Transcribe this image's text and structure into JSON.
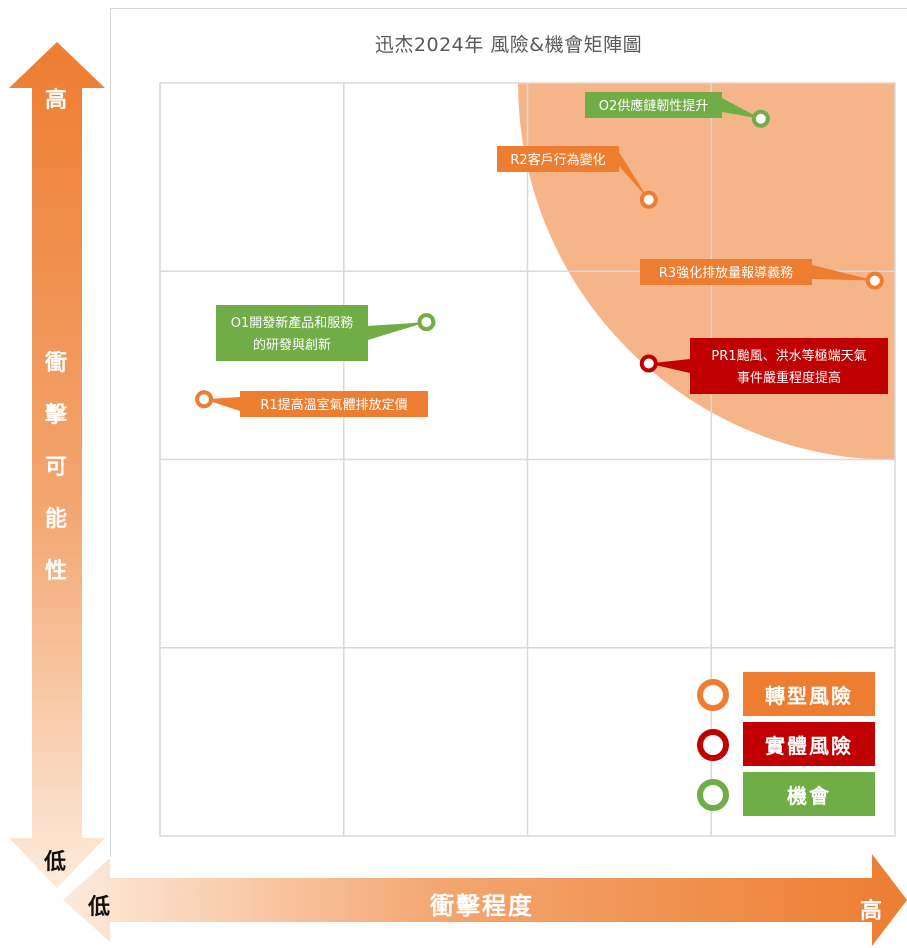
{
  "title": "迅杰2024年 風險&機會矩陣圖",
  "axes": {
    "y_label": [
      "衝",
      "擊",
      "可",
      "能",
      "性"
    ],
    "y_high": "高",
    "y_low": "低",
    "x_label": "衝擊程度",
    "x_low": "低",
    "x_high": "高"
  },
  "colors": {
    "transition_risk": "#ED7D31",
    "physical_risk": "#C00000",
    "opportunity": "#70AD47",
    "high_zone": "#F4B183"
  },
  "legend": [
    {
      "label": "轉型風險",
      "color": "#ED7D31"
    },
    {
      "label": "實體風險",
      "color": "#C00000"
    },
    {
      "label": "機會",
      "color": "#70AD47"
    }
  ],
  "chart_data": {
    "type": "scatter",
    "title": "迅杰2024年 風險&機會矩陣圖",
    "xlabel": "衝擊程度",
    "ylabel": "衝擊可能性",
    "xlim": [
      0,
      4
    ],
    "ylim": [
      0,
      4
    ],
    "grid": true,
    "legend_position": "bottom-right",
    "points": [
      {
        "id": "O2",
        "label": "O2供應鏈韌性提升",
        "x": 3.27,
        "y": 3.81,
        "category": "機會"
      },
      {
        "id": "R2",
        "label": "R2客戶行為變化",
        "x": 2.66,
        "y": 3.38,
        "category": "轉型風險"
      },
      {
        "id": "R3",
        "label": "R3強化排放量報導義務",
        "x": 3.89,
        "y": 2.95,
        "category": "轉型風險"
      },
      {
        "id": "O1",
        "label": "O1開發新產品和服務的研發與創新",
        "x": 1.45,
        "y": 2.73,
        "category": "機會"
      },
      {
        "id": "PR1",
        "label": "PR1颱風、洪水等極端天氣事件嚴重程度提高",
        "x": 2.66,
        "y": 2.51,
        "category": "實體風險"
      },
      {
        "id": "R1",
        "label": "R1提高溫室氣體排放定價",
        "x": 0.24,
        "y": 2.32,
        "category": "轉型風險"
      }
    ]
  },
  "callouts": [
    {
      "lines": [
        "O2供應鏈韌性提升"
      ]
    },
    {
      "lines": [
        "R2客戶行為變化"
      ]
    },
    {
      "lines": [
        "R3強化排放量報導義務"
      ]
    },
    {
      "lines": [
        "O1開發新產品和服務",
        "的研發與創新"
      ]
    },
    {
      "lines": [
        "PR1颱風、洪水等極端天氣",
        "事件嚴重程度提高"
      ]
    },
    {
      "lines": [
        "R1提高溫室氣體排放定價"
      ]
    }
  ]
}
